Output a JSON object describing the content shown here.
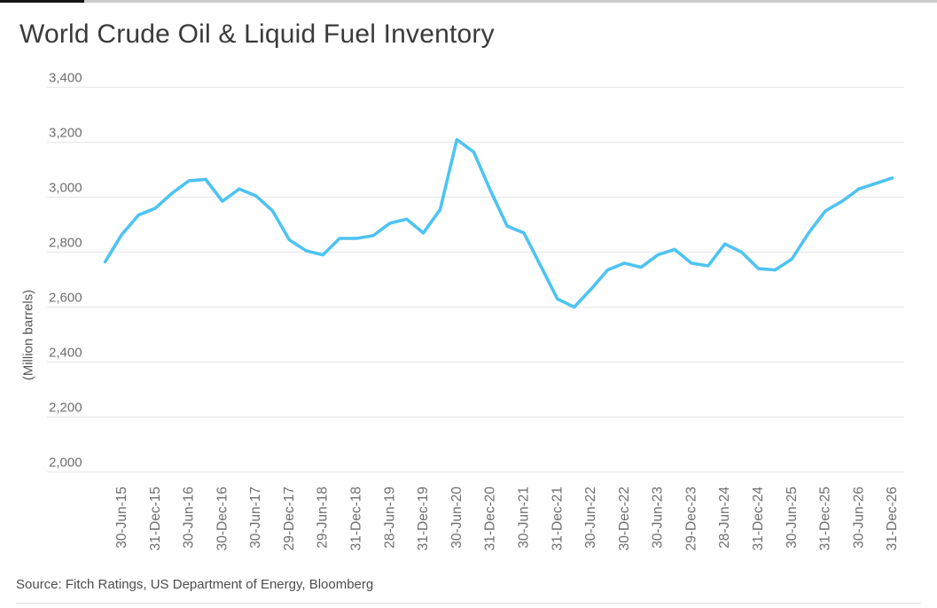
{
  "page": {
    "title": "World Crude Oil & Liquid Fuel Inventory"
  },
  "footer": {
    "source": "Source: Fitch Ratings, US Department of Energy, Bloomberg"
  },
  "chart_data": {
    "type": "line",
    "title": "World Crude Oil & Liquid Fuel Inventory",
    "ylabel": "(Million barrels)",
    "ylim": [
      2000,
      3400
    ],
    "ytick_interval": 200,
    "ytick_labels": [
      "3,400",
      "3,200",
      "3,000",
      "2,800",
      "2,600",
      "2,400",
      "2,200",
      "2,000"
    ],
    "grid": "horizontal-only",
    "legend": "none",
    "x_tick_labels": [
      "30-Jun-15",
      "31-Dec-15",
      "30-Jun-16",
      "30-Dec-16",
      "30-Jun-17",
      "29-Dec-17",
      "29-Jun-18",
      "31-Dec-18",
      "28-Jun-19",
      "31-Dec-19",
      "30-Jun-20",
      "31-Dec-20",
      "30-Jun-21",
      "31-Dec-21",
      "30-Jun-22",
      "30-Dec-22",
      "30-Jun-23",
      "29-Dec-23",
      "28-Jun-24",
      "31-Dec-24",
      "30-Jun-25",
      "31-Dec-25",
      "30-Jun-26",
      "31-Dec-26"
    ],
    "points_per_label": 2,
    "x_note": "Quarterly data points; x tick labels mark every second point, series starts one quarter before the first label",
    "series": [
      {
        "name": "World crude oil & liquid fuel inventory",
        "color": "#4ec3f2",
        "values": [
          2765,
          2865,
          2935,
          2960,
          3015,
          3060,
          3065,
          2985,
          3030,
          3005,
          2950,
          2845,
          2805,
          2790,
          2850,
          2850,
          2860,
          2905,
          2920,
          2870,
          2955,
          3210,
          3165,
          3025,
          2895,
          2870,
          2750,
          2630,
          2600,
          2665,
          2735,
          2760,
          2745,
          2790,
          2810,
          2760,
          2750,
          2830,
          2800,
          2740,
          2735,
          2775,
          2870,
          2950,
          2985,
          3030,
          3050,
          3070
        ]
      }
    ]
  },
  "theme": {
    "title_color": "#3a3a3a",
    "axis_text_color": "#6e6e6e",
    "axis_title_color": "#555555",
    "grid_color": "#e9e9e9",
    "line_color": "#4ec3f2",
    "source_color": "#4c4c4c",
    "divider_color": "#dedede",
    "progress_fill_color": "#151515",
    "progress_track_color": "#cbcbcb"
  }
}
